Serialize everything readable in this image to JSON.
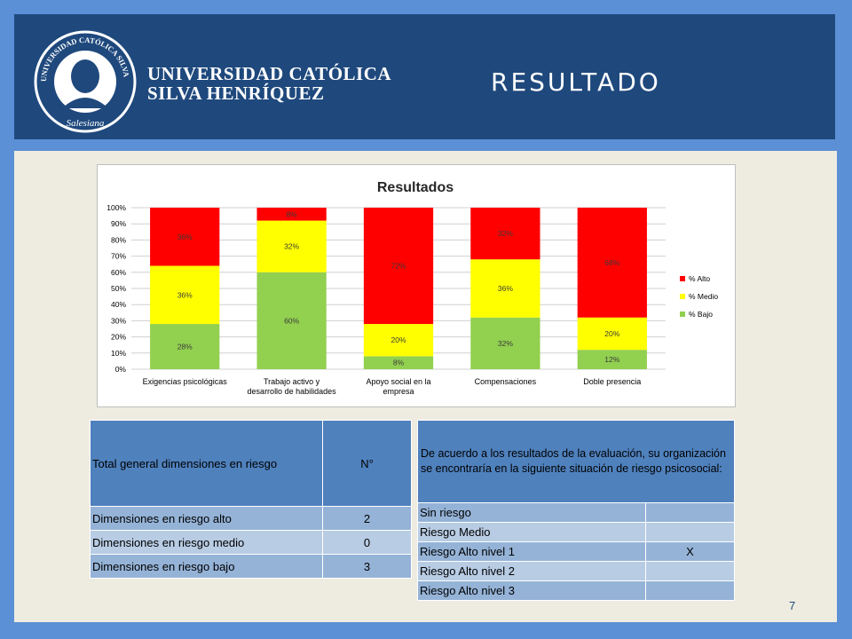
{
  "header": {
    "title": "RESULTADO",
    "university_line1": "UNIVERSIDAD CATÓLICA",
    "university_line2": "SILVA HENRÍQUEZ",
    "seal_text": "UNIVERSIDAD CATÓLICA SILVA HENRÍQUEZ",
    "seal_motto": "Salesiana"
  },
  "colors": {
    "alto": "#ff0000",
    "medio": "#ffff00",
    "bajo": "#92d050",
    "header_bg": "#1f497d",
    "table_header": "#4f81bd"
  },
  "chart_data": {
    "type": "bar",
    "stacked": true,
    "title": "Resultados",
    "categories": [
      [
        "Exigencias psicológicas"
      ],
      [
        "Trabajo activo y",
        "desarrollo de habilidades"
      ],
      [
        "Apoyo social en la",
        "empresa"
      ],
      [
        "Compensaciones"
      ],
      [
        "Doble presencia"
      ]
    ],
    "series": [
      {
        "name": "% Bajo",
        "values": [
          28,
          60,
          8,
          32,
          12
        ],
        "labels": [
          "28%",
          "60%",
          "8%",
          "32%",
          "12%"
        ]
      },
      {
        "name": "% Medio",
        "values": [
          36,
          32,
          20,
          36,
          20
        ],
        "labels": [
          "36%",
          "32%",
          "20%",
          "36%",
          "20%"
        ]
      },
      {
        "name": "% Alto",
        "values": [
          36,
          8,
          72,
          32,
          68
        ],
        "labels": [
          "36%",
          "8%",
          "72%",
          "32%",
          "68%"
        ]
      }
    ],
    "legend_order": [
      "% Alto",
      "% Medio",
      "% Bajo"
    ],
    "yticks": [
      "0%",
      "10%",
      "20%",
      "30%",
      "40%",
      "50%",
      "60%",
      "70%",
      "80%",
      "90%",
      "100%"
    ],
    "ylim": [
      0,
      100
    ],
    "grid": true,
    "legend": "right"
  },
  "risk_table": {
    "header_label": "Total general dimensiones en riesgo",
    "header_count": "N°",
    "rows": [
      {
        "label": "Dimensiones en riesgo alto",
        "value": "2"
      },
      {
        "label": "Dimensiones en riesgo medio",
        "value": "0"
      },
      {
        "label": "Dimensiones en riesgo bajo",
        "value": "3"
      }
    ]
  },
  "situation_table": {
    "header": "De acuerdo a los resultados de la evaluación, su organización se encontraría en la siguiente situación de riesgo psicosocial:",
    "rows": [
      {
        "label": "Sin riesgo",
        "mark": ""
      },
      {
        "label": "Riesgo Medio",
        "mark": ""
      },
      {
        "label": "Riesgo Alto nivel 1",
        "mark": "X"
      },
      {
        "label": "Riesgo Alto nivel 2",
        "mark": ""
      },
      {
        "label": "Riesgo Alto nivel 3",
        "mark": ""
      }
    ]
  },
  "page_number": "7"
}
